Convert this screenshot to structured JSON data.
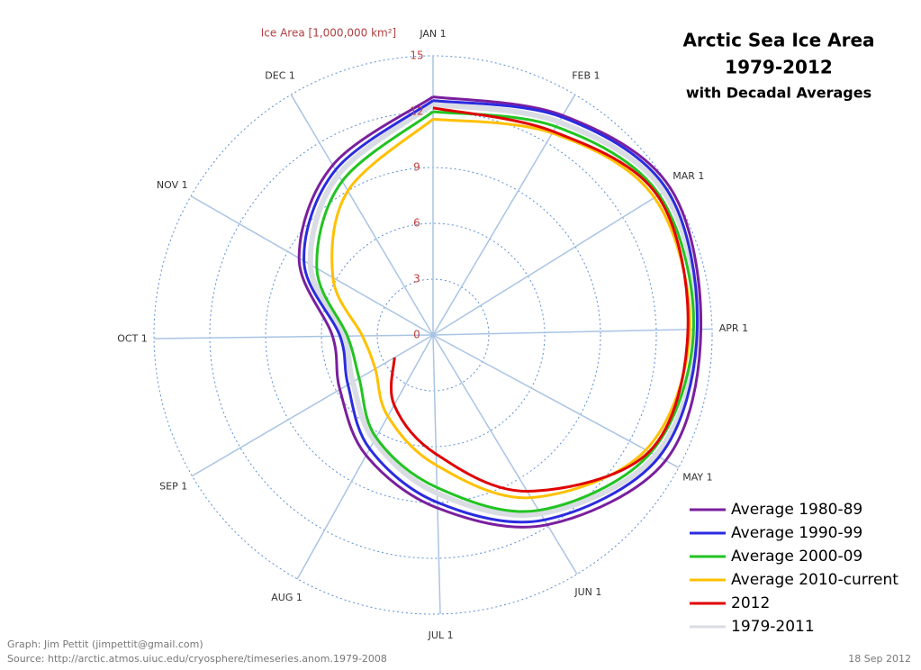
{
  "chart_data": {
    "type": "polar-line",
    "title": [
      "Arctic Sea Ice Area",
      "1979-2012",
      "with Decadal Averages"
    ],
    "r_axis_label": "Ice Area [1,000,000 km²]",
    "rlim": [
      0,
      15
    ],
    "rticks": [
      0,
      3,
      6,
      9,
      12,
      15
    ],
    "xlim": [
      0,
      365
    ],
    "months": {
      "labels": [
        "JAN 1",
        "FEB 1",
        "MAR 1",
        "APR 1",
        "MAY 1",
        "JUN 1",
        "JUL 1",
        "AUG 1",
        "SEP 1",
        "OCT 1",
        "NOV 1",
        "DEC 1"
      ],
      "days": [
        0,
        31,
        59,
        90,
        120,
        151,
        181,
        212,
        243,
        273,
        304,
        334
      ]
    },
    "x": [
      0,
      31,
      59,
      90,
      120,
      151,
      181,
      212,
      243,
      273,
      304,
      334,
      365
    ],
    "series": [
      {
        "name": "1979-2011",
        "color": "#d9dde3",
        "values": [
          12.4,
          13.3,
          14.6,
          14.2,
          13.6,
          11.2,
          8.5,
          6.5,
          5.0,
          4.8,
          7.6,
          10.0,
          12.4
        ]
      },
      {
        "name": "Average 1980-89",
        "color": "#7a1f9e",
        "values": [
          12.8,
          13.7,
          15.0,
          14.4,
          14.2,
          11.9,
          9.3,
          7.4,
          5.8,
          5.4,
          8.3,
          10.6,
          12.8
        ]
      },
      {
        "name": "Average 1990-99",
        "color": "#2b2be0",
        "values": [
          12.6,
          13.6,
          14.8,
          14.2,
          13.8,
          11.6,
          9.0,
          7.0,
          5.3,
          5.0,
          8.0,
          10.3,
          12.6
        ]
      },
      {
        "name": "Average 2000-09",
        "color": "#22c322",
        "values": [
          12.0,
          13.0,
          14.3,
          14.0,
          13.3,
          11.0,
          8.2,
          6.3,
          4.6,
          4.6,
          7.2,
          9.6,
          12.0
        ]
      },
      {
        "name": "Average 2010-current",
        "color": "#ffc000",
        "values": [
          11.6,
          12.6,
          14.0,
          13.8,
          13.0,
          10.2,
          7.0,
          5.0,
          3.6,
          3.8,
          6.2,
          9.0,
          11.6
        ]
      },
      {
        "name": "2012",
        "color": "#e00000",
        "values": [
          12.2,
          12.7,
          14.2,
          13.7,
          13.2,
          9.8,
          6.4,
          4.3,
          2.4,
          null,
          null,
          null,
          null
        ]
      }
    ],
    "legend_order": [
      1,
      2,
      3,
      4,
      5,
      0
    ],
    "footer": {
      "credit": "Graph: Jim Pettit (jimpettit@gmail.com)",
      "source": "Source: http://arctic.atmos.uiuc.edu/cryosphere/timeseries.anom.1979-2008",
      "date": "18 Sep 2012"
    }
  }
}
